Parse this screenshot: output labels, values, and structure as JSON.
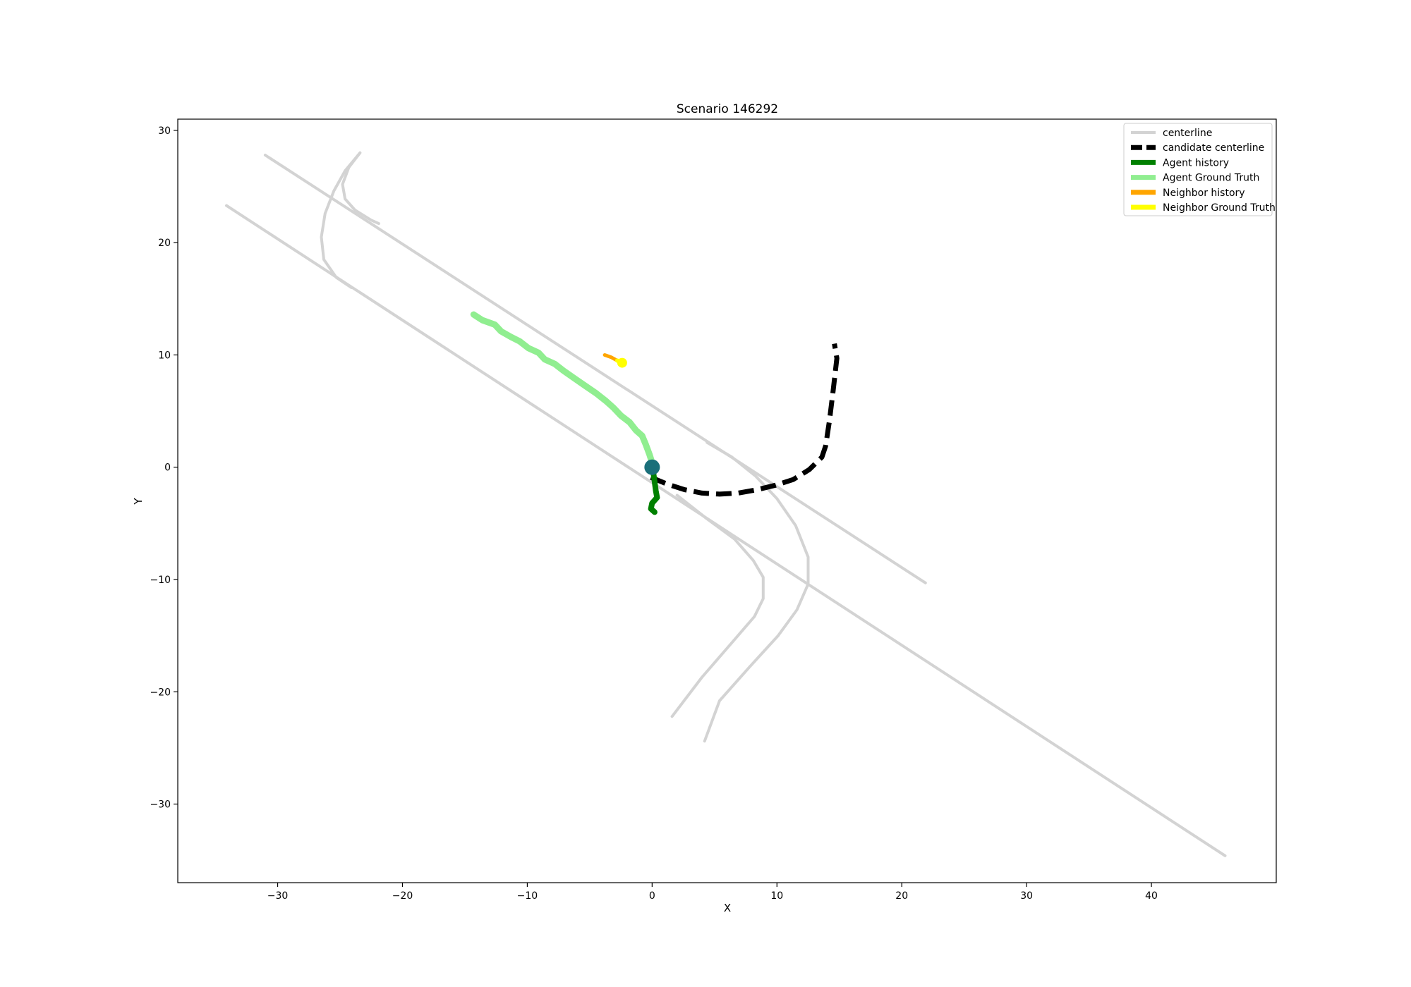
{
  "chart_data": {
    "type": "line",
    "title": "Scenario 146292",
    "xlabel": "X",
    "ylabel": "Y",
    "xlim": [
      -38,
      50
    ],
    "ylim": [
      -37,
      31
    ],
    "xticks": [
      -30,
      -20,
      -10,
      0,
      10,
      20,
      30,
      40
    ],
    "yticks": [
      -30,
      -20,
      -10,
      0,
      10,
      20,
      30
    ],
    "tick_labels": {
      "x": [
        "−30",
        "−20",
        "−10",
        "0",
        "10",
        "20",
        "30",
        "40"
      ],
      "y": [
        "−30",
        "−20",
        "−10",
        "0",
        "10",
        "20",
        "30"
      ]
    },
    "grid": false,
    "legend_position": "top-right",
    "legend": [
      {
        "label": "centerline",
        "color": "#d3d3d3",
        "style": "solid"
      },
      {
        "label": "candidate centerline",
        "color": "#000000",
        "style": "dashed"
      },
      {
        "label": "Agent history",
        "color": "#008000",
        "style": "solid"
      },
      {
        "label": "Agent Ground Truth",
        "color": "#90ee90",
        "style": "solid"
      },
      {
        "label": "Neighbor history",
        "color": "#ffa500",
        "style": "solid"
      },
      {
        "label": "Neighbor Ground Truth",
        "color": "#ffff00",
        "style": "solid"
      }
    ],
    "series": [
      {
        "group": "centerline",
        "color": "#d3d3d3",
        "points": [
          [
            -31.0,
            27.8
          ],
          [
            21.9,
            -10.3
          ]
        ]
      },
      {
        "group": "centerline",
        "color": "#d3d3d3",
        "points": [
          [
            -34.1,
            23.3
          ],
          [
            45.9,
            -34.6
          ]
        ]
      },
      {
        "group": "centerline",
        "color": "#d3d3d3",
        "points": [
          [
            -23.4,
            28.0
          ],
          [
            -24.6,
            26.4
          ],
          [
            -25.5,
            24.6
          ],
          [
            -26.2,
            22.6
          ],
          [
            -26.5,
            20.5
          ],
          [
            -26.3,
            18.5
          ],
          [
            -25.3,
            16.9
          ],
          [
            -24.1,
            16.0
          ]
        ]
      },
      {
        "group": "centerline",
        "color": "#d3d3d3",
        "points": [
          [
            -23.4,
            28.0
          ],
          [
            -24.3,
            26.7
          ],
          [
            -24.8,
            25.2
          ],
          [
            -24.6,
            23.9
          ],
          [
            -23.8,
            22.9
          ],
          [
            -22.5,
            22.0
          ],
          [
            -21.9,
            21.7
          ]
        ]
      },
      {
        "group": "centerline",
        "color": "#d3d3d3",
        "points": [
          [
            4.4,
            2.2
          ],
          [
            6.4,
            0.9
          ],
          [
            8.3,
            -0.8
          ],
          [
            10.0,
            -2.8
          ],
          [
            11.5,
            -5.2
          ],
          [
            12.5,
            -8.0
          ],
          [
            12.5,
            -10.4
          ],
          [
            11.6,
            -12.7
          ],
          [
            10.1,
            -15.0
          ],
          [
            7.8,
            -17.8
          ],
          [
            5.4,
            -20.8
          ],
          [
            4.2,
            -24.4
          ]
        ]
      },
      {
        "group": "centerline",
        "color": "#d3d3d3",
        "points": [
          [
            2.0,
            -2.5
          ],
          [
            4.4,
            -4.6
          ],
          [
            6.6,
            -6.4
          ],
          [
            8.1,
            -8.3
          ],
          [
            8.9,
            -9.8
          ],
          [
            8.9,
            -11.7
          ],
          [
            8.2,
            -13.3
          ],
          [
            6.1,
            -16.0
          ],
          [
            4.0,
            -18.7
          ],
          [
            1.6,
            -22.2
          ]
        ]
      },
      {
        "group": "candidate centerline",
        "color": "#000000",
        "dashed": true,
        "points": [
          [
            -0.1,
            -0.9
          ],
          [
            1.2,
            -1.5
          ],
          [
            2.6,
            -2.0
          ],
          [
            4.0,
            -2.3
          ],
          [
            5.4,
            -2.4
          ],
          [
            6.9,
            -2.3
          ],
          [
            8.4,
            -2.0
          ],
          [
            9.9,
            -1.6
          ],
          [
            11.3,
            -1.1
          ],
          [
            12.6,
            -0.2
          ],
          [
            13.6,
            0.9
          ],
          [
            13.9,
            1.9
          ],
          [
            14.2,
            4.1
          ],
          [
            14.5,
            6.8
          ],
          [
            14.8,
            9.7
          ],
          [
            14.6,
            11.0
          ]
        ]
      },
      {
        "group": "Agent Ground Truth",
        "color": "#90ee90",
        "points": [
          [
            -14.3,
            13.6
          ],
          [
            -13.6,
            13.1
          ],
          [
            -12.6,
            12.7
          ],
          [
            -12.1,
            12.1
          ],
          [
            -11.3,
            11.6
          ],
          [
            -10.6,
            11.2
          ],
          [
            -9.9,
            10.6
          ],
          [
            -9.1,
            10.2
          ],
          [
            -8.6,
            9.6
          ],
          [
            -7.8,
            9.2
          ],
          [
            -7.1,
            8.6
          ],
          [
            -6.2,
            7.9
          ],
          [
            -5.3,
            7.2
          ],
          [
            -4.5,
            6.6
          ],
          [
            -3.7,
            5.9
          ],
          [
            -3.1,
            5.3
          ],
          [
            -2.5,
            4.6
          ],
          [
            -1.8,
            4.0
          ],
          [
            -1.3,
            3.3
          ],
          [
            -0.8,
            2.8
          ],
          [
            -0.5,
            2.0
          ],
          [
            -0.2,
            1.1
          ],
          [
            0.0,
            0.4
          ]
        ]
      },
      {
        "group": "Agent history",
        "color": "#008000",
        "points": [
          [
            0.0,
            0.0
          ],
          [
            0.1,
            -0.5
          ],
          [
            0.2,
            -1.3
          ],
          [
            0.3,
            -2.1
          ],
          [
            0.4,
            -2.7
          ],
          [
            0.0,
            -3.2
          ],
          [
            -0.1,
            -3.7
          ],
          [
            0.2,
            -4.0
          ]
        ]
      },
      {
        "group": "Neighbor history",
        "color": "#ffa500",
        "points": [
          [
            -3.8,
            10.0
          ],
          [
            -3.3,
            9.8
          ],
          [
            -2.8,
            9.5
          ]
        ]
      },
      {
        "group": "Neighbor Ground Truth",
        "color": "#ffff00",
        "points": [
          [
            -2.8,
            9.5
          ],
          [
            -2.4,
            9.3
          ],
          [
            -2.5,
            9.1
          ]
        ]
      }
    ],
    "markers": [
      {
        "label": "agent current position",
        "x": 0.0,
        "y": 0.0,
        "color": "#1a6f7a"
      },
      {
        "label": "neighbor current position",
        "x": -2.4,
        "y": 9.3,
        "color": "#ffff00"
      }
    ]
  }
}
